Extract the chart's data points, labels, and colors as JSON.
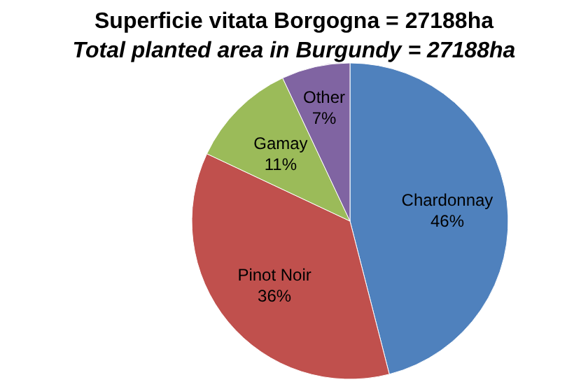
{
  "chart_data": {
    "type": "pie",
    "title": "Superficie vitata Borgogna = 27188ha",
    "subtitle": "Total planted area in Burgundy = 27188ha",
    "categories": [
      "Chardonnay",
      "Pinot Noir",
      "Gamay",
      "Other"
    ],
    "values": [
      46,
      36,
      11,
      7
    ],
    "value_labels": [
      "46%",
      "36%",
      "11%",
      "7%"
    ],
    "colors": [
      "#4f81bd",
      "#c0504d",
      "#9bbb59",
      "#8064a2"
    ]
  }
}
